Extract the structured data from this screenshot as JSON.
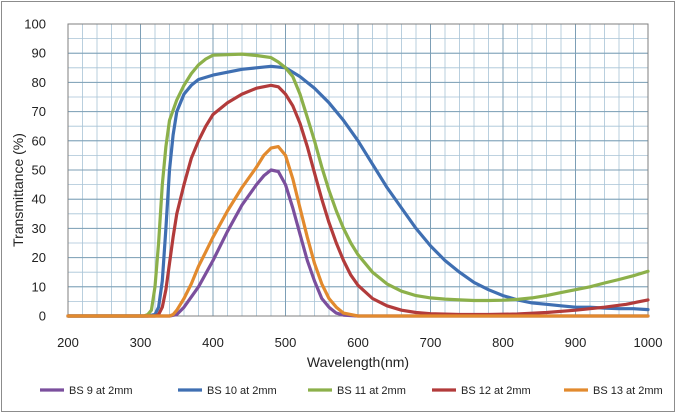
{
  "chart_data": {
    "type": "line",
    "title": "",
    "xlabel": "Wavelength(nm)",
    "ylabel": "Transmittance (%)",
    "xlim": [
      200,
      1000
    ],
    "ylim": [
      0,
      100
    ],
    "x_ticks": [
      200,
      300,
      400,
      500,
      600,
      700,
      800,
      900,
      1000
    ],
    "y_ticks": [
      0,
      10,
      20,
      30,
      40,
      50,
      60,
      70,
      80,
      90,
      100
    ],
    "x_minor_step": 20,
    "y_minor_step": 5,
    "grid": true,
    "legend_position": "bottom",
    "series": [
      {
        "name": "BS 9 at 2mm",
        "color": "#7b4f9d",
        "points": [
          [
            200,
            0
          ],
          [
            340,
            0
          ],
          [
            350,
            0.5
          ],
          [
            360,
            3
          ],
          [
            380,
            10
          ],
          [
            400,
            19
          ],
          [
            420,
            29
          ],
          [
            440,
            38
          ],
          [
            460,
            45
          ],
          [
            470,
            48
          ],
          [
            480,
            50
          ],
          [
            490,
            49.5
          ],
          [
            500,
            45
          ],
          [
            510,
            37
          ],
          [
            520,
            28
          ],
          [
            530,
            19
          ],
          [
            540,
            12
          ],
          [
            550,
            6
          ],
          [
            560,
            3
          ],
          [
            570,
            1
          ],
          [
            580,
            0.3
          ],
          [
            600,
            0
          ],
          [
            1000,
            0
          ]
        ]
      },
      {
        "name": "BS 10 at 2mm",
        "color": "#3f6fb2",
        "points": [
          [
            200,
            0
          ],
          [
            310,
            0
          ],
          [
            320,
            0.5
          ],
          [
            325,
            3
          ],
          [
            330,
            12
          ],
          [
            335,
            30
          ],
          [
            340,
            50
          ],
          [
            345,
            62
          ],
          [
            350,
            70
          ],
          [
            360,
            76
          ],
          [
            370,
            79
          ],
          [
            380,
            81
          ],
          [
            400,
            82.5
          ],
          [
            420,
            83.5
          ],
          [
            440,
            84.5
          ],
          [
            460,
            85
          ],
          [
            480,
            85.5
          ],
          [
            500,
            85
          ],
          [
            520,
            82
          ],
          [
            540,
            78
          ],
          [
            560,
            73
          ],
          [
            580,
            67
          ],
          [
            600,
            60
          ],
          [
            620,
            52
          ],
          [
            640,
            44
          ],
          [
            660,
            37
          ],
          [
            680,
            30
          ],
          [
            700,
            24
          ],
          [
            720,
            19
          ],
          [
            740,
            15
          ],
          [
            760,
            11.5
          ],
          [
            780,
            9
          ],
          [
            800,
            7
          ],
          [
            820,
            5.5
          ],
          [
            840,
            4.5
          ],
          [
            860,
            4
          ],
          [
            880,
            3.5
          ],
          [
            900,
            3
          ],
          [
            920,
            3
          ],
          [
            940,
            2.7
          ],
          [
            960,
            2.5
          ],
          [
            980,
            2.5
          ],
          [
            1000,
            2.2
          ]
        ]
      },
      {
        "name": "BS 11 at 2mm",
        "color": "#8cb04a",
        "points": [
          [
            200,
            0
          ],
          [
            305,
            0
          ],
          [
            310,
            0.5
          ],
          [
            315,
            2
          ],
          [
            320,
            10
          ],
          [
            325,
            25
          ],
          [
            330,
            45
          ],
          [
            335,
            58
          ],
          [
            340,
            67
          ],
          [
            350,
            74
          ],
          [
            360,
            79
          ],
          [
            370,
            83
          ],
          [
            380,
            86
          ],
          [
            390,
            88
          ],
          [
            400,
            89.3
          ],
          [
            420,
            89.5
          ],
          [
            440,
            89.7
          ],
          [
            460,
            89.2
          ],
          [
            480,
            88.5
          ],
          [
            490,
            87
          ],
          [
            500,
            85
          ],
          [
            510,
            82
          ],
          [
            520,
            76
          ],
          [
            530,
            68
          ],
          [
            540,
            60
          ],
          [
            550,
            51
          ],
          [
            560,
            43
          ],
          [
            570,
            36
          ],
          [
            580,
            30
          ],
          [
            590,
            25
          ],
          [
            600,
            21
          ],
          [
            620,
            15
          ],
          [
            640,
            11
          ],
          [
            660,
            8.5
          ],
          [
            680,
            7
          ],
          [
            700,
            6.2
          ],
          [
            720,
            5.8
          ],
          [
            740,
            5.5
          ],
          [
            760,
            5.3
          ],
          [
            780,
            5.3
          ],
          [
            800,
            5.4
          ],
          [
            820,
            5.7
          ],
          [
            840,
            6.2
          ],
          [
            860,
            7
          ],
          [
            880,
            8
          ],
          [
            900,
            9
          ],
          [
            920,
            10
          ],
          [
            940,
            11.3
          ],
          [
            960,
            12.5
          ],
          [
            980,
            13.8
          ],
          [
            1000,
            15.3
          ]
        ]
      },
      {
        "name": "BS 12 at 2mm",
        "color": "#b23b3b",
        "points": [
          [
            200,
            0
          ],
          [
            320,
            0
          ],
          [
            325,
            0.5
          ],
          [
            330,
            3
          ],
          [
            335,
            9
          ],
          [
            340,
            18
          ],
          [
            345,
            27
          ],
          [
            350,
            35
          ],
          [
            360,
            45
          ],
          [
            370,
            54
          ],
          [
            380,
            60
          ],
          [
            390,
            65
          ],
          [
            400,
            69
          ],
          [
            420,
            73
          ],
          [
            440,
            76
          ],
          [
            460,
            78
          ],
          [
            480,
            79
          ],
          [
            490,
            78.5
          ],
          [
            500,
            76
          ],
          [
            510,
            72
          ],
          [
            520,
            66
          ],
          [
            530,
            58
          ],
          [
            540,
            49
          ],
          [
            550,
            40
          ],
          [
            560,
            32
          ],
          [
            570,
            25
          ],
          [
            580,
            19
          ],
          [
            590,
            14
          ],
          [
            600,
            10.5
          ],
          [
            620,
            6
          ],
          [
            640,
            3.5
          ],
          [
            660,
            2
          ],
          [
            680,
            1.2
          ],
          [
            700,
            0.8
          ],
          [
            740,
            0.5
          ],
          [
            780,
            0.5
          ],
          [
            820,
            0.7
          ],
          [
            860,
            1.2
          ],
          [
            900,
            2
          ],
          [
            940,
            3
          ],
          [
            970,
            4
          ],
          [
            1000,
            5.5
          ]
        ]
      },
      {
        "name": "BS 13 at 2mm",
        "color": "#e28a2e",
        "points": [
          [
            200,
            0
          ],
          [
            340,
            0
          ],
          [
            345,
            0.5
          ],
          [
            350,
            2
          ],
          [
            360,
            6
          ],
          [
            370,
            11
          ],
          [
            380,
            17
          ],
          [
            390,
            22
          ],
          [
            400,
            27
          ],
          [
            420,
            36
          ],
          [
            440,
            44
          ],
          [
            460,
            51
          ],
          [
            470,
            55
          ],
          [
            480,
            57.5
          ],
          [
            490,
            58
          ],
          [
            500,
            55
          ],
          [
            510,
            47
          ],
          [
            520,
            37
          ],
          [
            530,
            27
          ],
          [
            540,
            18
          ],
          [
            550,
            11
          ],
          [
            560,
            6
          ],
          [
            570,
            3
          ],
          [
            580,
            1
          ],
          [
            600,
            0
          ],
          [
            1000,
            0
          ]
        ]
      }
    ]
  }
}
